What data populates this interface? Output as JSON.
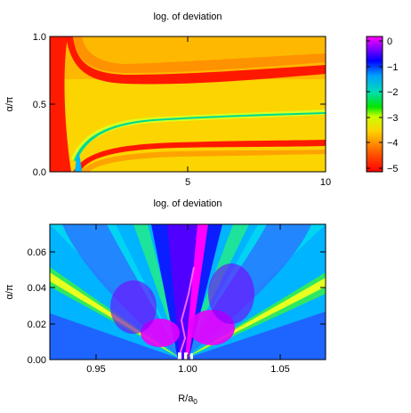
{
  "chart_data": [
    {
      "type": "heatmap",
      "title": "log. of deviation",
      "ylabel": "α/π",
      "xlabel": "",
      "xlim": [
        0.2,
        10
      ],
      "ylim": [
        0,
        1
      ],
      "x_ticks": [
        5,
        10
      ],
      "y_ticks": [
        0.0,
        0.5,
        1.0
      ],
      "x_tick_labels": [
        "5",
        "10"
      ],
      "y_tick_labels": [
        "0.0",
        "0.5",
        "1.0"
      ],
      "z_description": "log10 of deviation, from -5 (red) to 0 (magenta)",
      "features": [
        {
          "name": "upper red band",
          "alpha_at_R": [
            [
              0.5,
              0.95
            ],
            [
              1.5,
              0.7
            ],
            [
              3,
              0.66
            ],
            [
              6,
              0.68
            ],
            [
              10,
              0.72
            ]
          ]
        },
        {
          "name": "middle green ridge",
          "alpha_at_R": [
            [
              1.2,
              0.15
            ],
            [
              2,
              0.33
            ],
            [
              4,
              0.4
            ],
            [
              7,
              0.45
            ],
            [
              10,
              0.48
            ]
          ]
        },
        {
          "name": "lower red band",
          "alpha_at_R": [
            [
              1.2,
              0.05
            ],
            [
              2,
              0.15
            ],
            [
              4,
              0.19
            ],
            [
              7,
              0.22
            ],
            [
              10,
              0.25
            ]
          ]
        }
      ]
    },
    {
      "type": "heatmap",
      "title": "log. of deviation",
      "xlabel": "R/a0",
      "ylabel": "α/π",
      "xlim": [
        0.925,
        1.075
      ],
      "ylim": [
        0,
        0.075
      ],
      "x_ticks": [
        0.95,
        1.0,
        1.05
      ],
      "y_ticks": [
        0.0,
        0.02,
        0.04,
        0.06
      ],
      "x_tick_labels": [
        "0.95",
        "1.00",
        "1.05"
      ],
      "y_tick_labels": [
        "0.00",
        "0.02",
        "0.04",
        "0.06"
      ],
      "z_description": "log10 of deviation, same colour scale",
      "features": [
        {
          "name": "lobe ridges",
          "description": "Fan of lobes diverging from the point R/a0 = 1.00, α/π = 0; green-yellow ridges near the left and right edges, magenta pockets close to R/a0 = 1.00"
        }
      ]
    }
  ],
  "colorbar": {
    "ticks": [
      0,
      -1,
      -2,
      -3,
      -4,
      -5
    ],
    "tick_labels": [
      "0",
      "−1",
      "−2",
      "−3",
      "−4",
      "−5"
    ],
    "colors": [
      {
        "v": -5.3,
        "c": "#ff0000"
      },
      {
        "v": -4.5,
        "c": "#ff5a00"
      },
      {
        "v": -3.6,
        "c": "#ffd200"
      },
      {
        "v": -3.0,
        "c": "#c8ff00"
      },
      {
        "v": -2.6,
        "c": "#00e600"
      },
      {
        "v": -2.0,
        "c": "#00dcb4"
      },
      {
        "v": -1.3,
        "c": "#00a0ff"
      },
      {
        "v": -0.7,
        "c": "#0000ff"
      },
      {
        "v": -0.1,
        "c": "#a000ff"
      },
      {
        "v": 0.3,
        "c": "#ff00ff"
      }
    ]
  }
}
